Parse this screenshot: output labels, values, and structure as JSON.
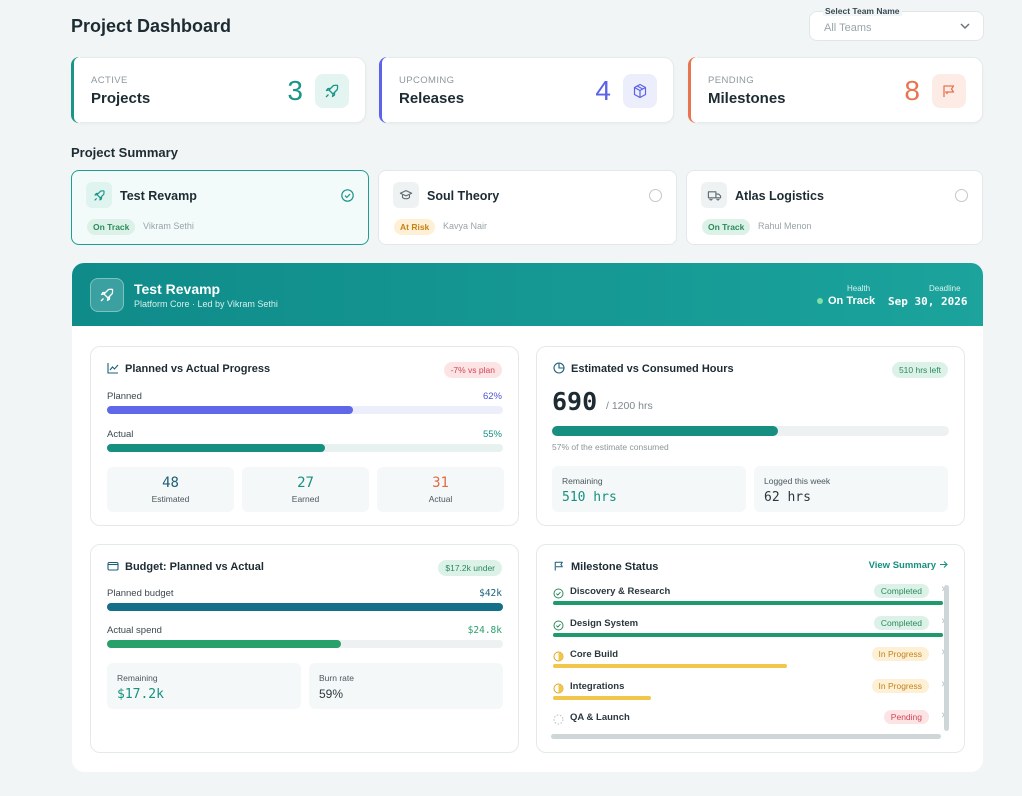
{
  "page": {
    "title": "Project Dashboard"
  },
  "team_select": {
    "label": "Select Team Name",
    "value": "All Teams"
  },
  "stats": [
    {
      "caption": "ACTIVE",
      "name": "Projects",
      "value": "3",
      "color": "#1a9588",
      "icon": "rocket-icon"
    },
    {
      "caption": "UPCOMING",
      "name": "Releases",
      "value": "4",
      "color": "#5b63e6",
      "icon": "package-icon"
    },
    {
      "caption": "PENDING",
      "name": "Milestones",
      "value": "8",
      "color": "#e8754f",
      "icon": "flag-icon"
    }
  ],
  "summary": {
    "heading": "Project Summary",
    "projects": [
      {
        "name": "Test Revamp",
        "status": "On Track",
        "owner": "Vikram Sethi",
        "selected": true,
        "icon": "rocket-icon"
      },
      {
        "name": "Soul Theory",
        "status": "At Risk",
        "owner": "Kavya Nair",
        "selected": false,
        "icon": "graduation-cap-icon"
      },
      {
        "name": "Atlas Logistics",
        "status": "On Track",
        "owner": "Rahul Menon",
        "selected": false,
        "icon": "truck-icon"
      }
    ]
  },
  "detail": {
    "title": "Test Revamp",
    "subtitle": "Platform Core · Led by Vikram Sethi",
    "health_label": "Health",
    "health_value": "On Track",
    "deadline_label": "Deadline",
    "deadline_value": "Sep 30, 2026"
  },
  "progress": {
    "title": "Planned vs Actual Progress",
    "badge": "-7% vs plan",
    "planned_label": "Planned",
    "planned_value": "62%",
    "planned_pct": 62,
    "actual_label": "Actual",
    "actual_value": "55%",
    "actual_pct": 55,
    "stats": [
      {
        "value": "48",
        "label": "Estimated",
        "color": "#1b5f7a"
      },
      {
        "value": "27",
        "label": "Earned",
        "color": "#16907f"
      },
      {
        "value": "31",
        "label": "Actual",
        "color": "#e06c45"
      }
    ]
  },
  "hours": {
    "title": "Estimated vs Consumed Hours",
    "badge": "510 hrs left",
    "consumed": "690",
    "total": "/ 1200 hrs",
    "pct": 57,
    "note": "57% of the estimate consumed",
    "remaining_label": "Remaining",
    "remaining_value": "510 hrs",
    "logged_label": "Logged this week",
    "logged_value": "62 hrs"
  },
  "budget": {
    "title": "Budget: Planned vs Actual",
    "badge": "$17.2k under",
    "planned_label": "Planned budget",
    "planned_value": "$42k",
    "planned_pct": 100,
    "actual_label": "Actual spend",
    "actual_value": "$24.8k",
    "actual_pct": 59,
    "remaining_label": "Remaining",
    "remaining_value": "$17.2k",
    "burn_label": "Burn rate",
    "burn_value": "59%"
  },
  "milestones": {
    "title": "Milestone Status",
    "link": "View Summary",
    "items": [
      {
        "name": "Discovery & Research",
        "status": "Completed",
        "kind": "done",
        "pct": 100
      },
      {
        "name": "Design System",
        "status": "Completed",
        "kind": "done",
        "pct": 100
      },
      {
        "name": "Core Build",
        "status": "In Progress",
        "kind": "prog",
        "pct": 60
      },
      {
        "name": "Integrations",
        "status": "In Progress",
        "kind": "prog",
        "pct": 25
      },
      {
        "name": "QA & Launch",
        "status": "Pending",
        "kind": "pend",
        "pct": 0
      }
    ]
  }
}
